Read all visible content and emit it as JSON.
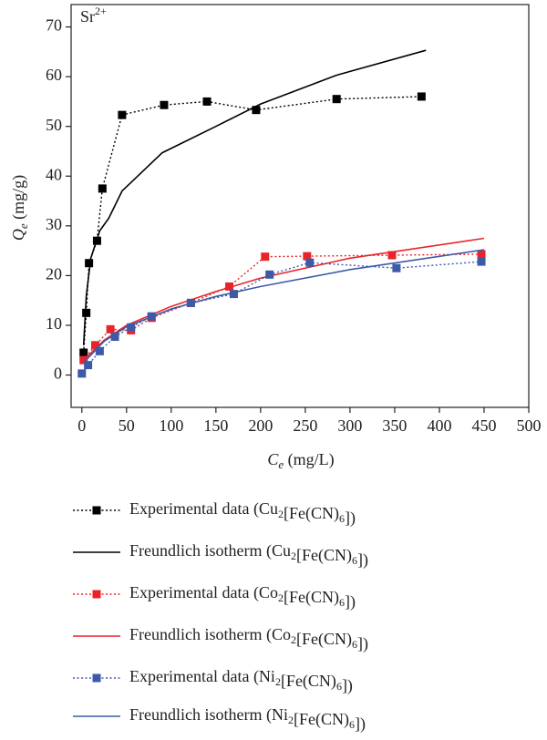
{
  "chart_data": {
    "type": "line",
    "annotation": "Sr2+",
    "x_label": "Ce (mg/L)",
    "y_label": "Qe (mg/g)",
    "xlim": [
      -12,
      500
    ],
    "ylim": [
      -6.5,
      74.5
    ],
    "xticks": [
      0,
      50,
      100,
      150,
      200,
      250,
      300,
      350,
      400,
      450,
      500
    ],
    "yticks": [
      0,
      10,
      20,
      30,
      40,
      50,
      60,
      70
    ],
    "series": [
      {
        "name": "Experimental data (Cu2[Fe(CN)6])",
        "color": "#000000",
        "style": "dotted-markers",
        "x": [
          2,
          5,
          8,
          17,
          23,
          45,
          92,
          140,
          195,
          285,
          380
        ],
        "values": [
          4.5,
          12.5,
          22.5,
          27,
          37.5,
          52.3,
          54.3,
          55,
          53.3,
          55.5,
          56
        ]
      },
      {
        "name": "Freundlich isotherm (Cu2[Fe(CN)6])",
        "color": "#000000",
        "style": "line",
        "x": [
          2,
          5,
          10,
          20,
          30,
          45,
          90,
          150,
          200,
          285,
          385
        ],
        "values": [
          6,
          16,
          23.5,
          29,
          31.5,
          37,
          44.7,
          50,
          54.5,
          60.3,
          65.3
        ]
      },
      {
        "name": "Experimental data (Co2[Fe(CN)6])",
        "color": "#e8242a",
        "style": "dotted-markers",
        "x": [
          2,
          15,
          32,
          55,
          78,
          122,
          165,
          205,
          252,
          347,
          447
        ],
        "values": [
          3,
          6,
          9.2,
          9,
          11.5,
          14.5,
          17.8,
          23.8,
          23.9,
          24.1,
          24.3
        ]
      },
      {
        "name": "Freundlich isotherm (Co2[Fe(CN)6])",
        "color": "#e8242a",
        "style": "line",
        "x": [
          2,
          25,
          50,
          100,
          150,
          200,
          300,
          450
        ],
        "values": [
          3,
          7,
          10,
          13.8,
          16.8,
          19.5,
          23.5,
          27.5
        ]
      },
      {
        "name": "Experimental data (Ni2[Fe(CN)6])",
        "color": "#3d5aa8",
        "style": "dotted-markers",
        "x": [
          0,
          7,
          20,
          37,
          55,
          78,
          122,
          170,
          210,
          255,
          352,
          447
        ],
        "values": [
          0.3,
          2,
          4.8,
          7.7,
          9.6,
          11.8,
          14.5,
          16.3,
          20.2,
          22.6,
          21.5,
          22.8
        ]
      },
      {
        "name": "Freundlich isotherm (Ni2[Fe(CN)6])",
        "color": "#3d5aa8",
        "style": "line",
        "x": [
          2,
          25,
          50,
          100,
          150,
          200,
          300,
          450
        ],
        "values": [
          2.5,
          6.8,
          9.7,
          13.3,
          15.8,
          17.8,
          21.2,
          25.2
        ]
      }
    ]
  }
}
